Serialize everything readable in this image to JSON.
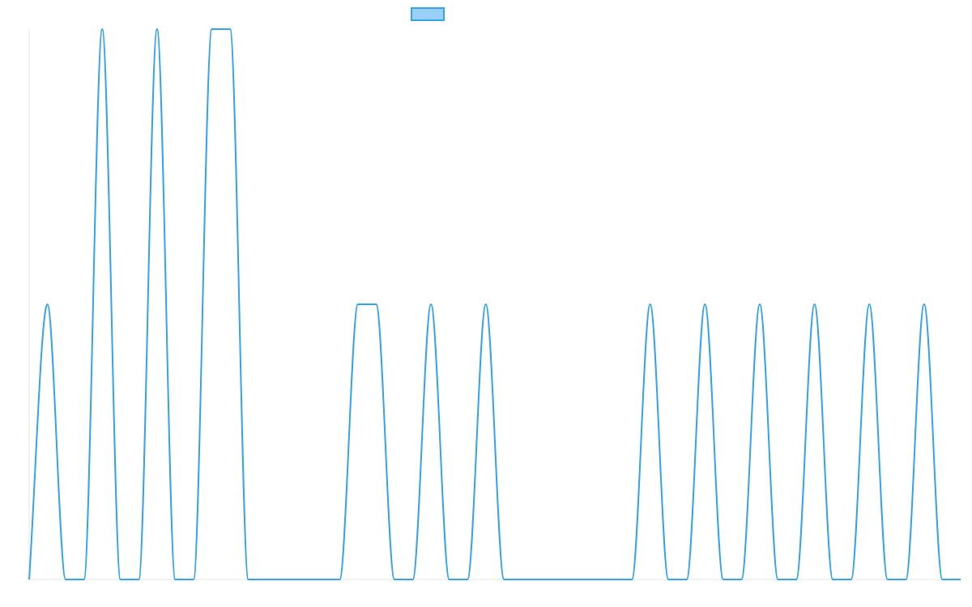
{
  "chart_data": {
    "type": "line",
    "title": "",
    "xlabel": "",
    "ylabel": "",
    "x": [
      0,
      1,
      2,
      3,
      4,
      5,
      6,
      7,
      8,
      9,
      10,
      11,
      12,
      13,
      14,
      15,
      16,
      17,
      18,
      19,
      20,
      21,
      22,
      23,
      24,
      25,
      26,
      27,
      28,
      29,
      30,
      31,
      32,
      33,
      34,
      35,
      36,
      37,
      38,
      39,
      40,
      41,
      42,
      43,
      44,
      45,
      46,
      47,
      48,
      49,
      50,
      51
    ],
    "series": [
      {
        "name": "",
        "color": "#36a2eb",
        "fill": "#9ad0f5",
        "values": [
          0,
          1,
          0,
          0,
          2,
          0,
          0,
          2,
          0,
          0,
          2,
          2,
          0,
          0,
          0,
          0,
          0,
          0,
          1,
          1,
          0,
          0,
          1,
          0,
          0,
          1,
          0,
          0,
          0,
          0,
          0,
          0,
          0,
          0,
          1,
          0,
          0,
          1,
          0,
          0,
          1,
          0,
          0,
          1,
          0,
          0,
          1,
          0,
          0,
          1,
          0,
          0
        ]
      }
    ],
    "ylim": [
      0,
      2
    ],
    "grid": false,
    "legend": "top"
  }
}
